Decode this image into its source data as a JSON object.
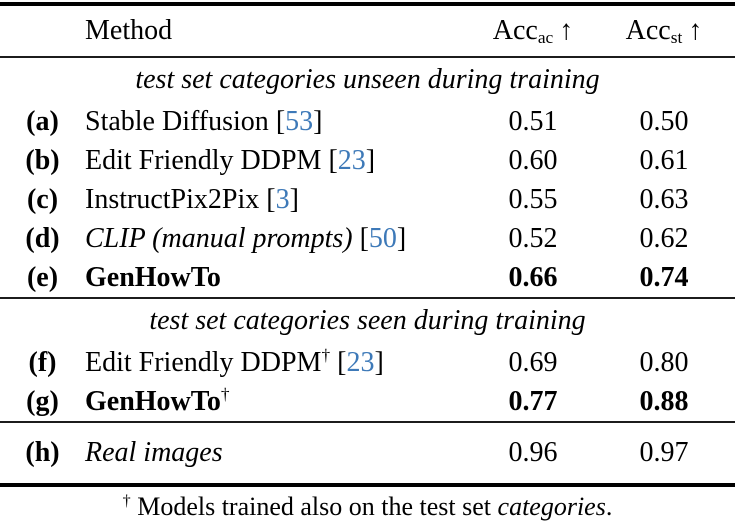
{
  "colors": {
    "citation": "#3d79b8",
    "text": "#000000"
  },
  "header": {
    "method": "Method",
    "acc_ac": {
      "name": "Acc",
      "sub": "ac",
      "arrow": "↑"
    },
    "acc_st": {
      "name": "Acc",
      "sub": "st",
      "arrow": "↑"
    }
  },
  "symbols": {
    "bracket_open": "[",
    "bracket_close": "]",
    "dagger": "†"
  },
  "sections": [
    {
      "title": "test set categories unseen during training",
      "rows": [
        {
          "label": "(a)",
          "method": "Stable Diffusion",
          "cite": "53",
          "acc_ac": "0.51",
          "acc_st": "0.50"
        },
        {
          "label": "(b)",
          "method": "Edit Friendly DDPM",
          "cite": "23",
          "acc_ac": "0.60",
          "acc_st": "0.61"
        },
        {
          "label": "(c)",
          "method": "InstructPix2Pix",
          "cite": "3",
          "acc_ac": "0.55",
          "acc_st": "0.63"
        },
        {
          "label": "(d)",
          "method": "CLIP (manual prompts)",
          "cite": "50",
          "acc_ac": "0.52",
          "acc_st": "0.62"
        },
        {
          "label": "(e)",
          "method": "GenHowTo",
          "acc_ac": "0.66",
          "acc_st": "0.74"
        }
      ]
    },
    {
      "title": "test set categories seen during training",
      "rows": [
        {
          "label": "(f)",
          "method": "Edit Friendly DDPM",
          "cite": "23",
          "acc_ac": "0.69",
          "acc_st": "0.80"
        },
        {
          "label": "(g)",
          "method": "GenHowTo",
          "acc_ac": "0.77",
          "acc_st": "0.88"
        }
      ]
    },
    {
      "rows": [
        {
          "label": "(h)",
          "method": "Real images",
          "acc_ac": "0.96",
          "acc_st": "0.97"
        }
      ]
    }
  ],
  "footnote": {
    "dagger": "†",
    "text": "Models trained also on the test set ",
    "italic_word": "categories",
    "period": "."
  }
}
